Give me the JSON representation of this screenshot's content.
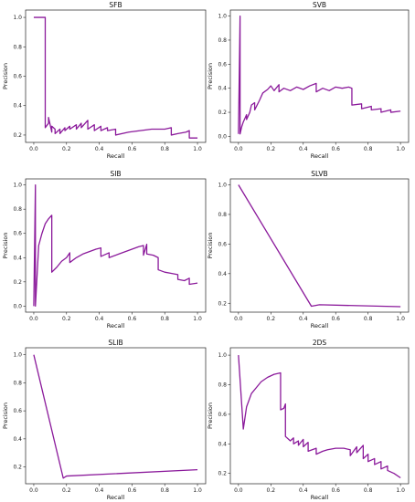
{
  "chart_data": [
    {
      "type": "line",
      "title": "SFB",
      "xlabel": "Recall",
      "ylabel": "Precision",
      "xlim": [
        -0.05,
        1.05
      ],
      "ylim": [
        0.15,
        1.05
      ],
      "xticks": [
        0.0,
        0.2,
        0.4,
        0.6,
        0.8,
        1.0
      ],
      "yticks": [
        0.2,
        0.4,
        0.6,
        0.8,
        1.0
      ],
      "xticklabels": [
        "0.0",
        "0.2",
        "0.4",
        "0.6",
        "0.8",
        "1.0"
      ],
      "yticklabels": [
        "0.2",
        "0.4",
        "0.6",
        "0.8",
        "1.0"
      ],
      "color": "#8b1a9b",
      "series": [
        {
          "x": [
            0.0,
            0.07,
            0.07,
            0.09,
            0.09,
            0.11,
            0.11,
            0.13,
            0.13,
            0.16,
            0.16,
            0.19,
            0.19,
            0.22,
            0.22,
            0.26,
            0.26,
            0.29,
            0.29,
            0.33,
            0.33,
            0.37,
            0.37,
            0.41,
            0.41,
            0.45,
            0.45,
            0.5,
            0.5,
            0.58,
            0.65,
            0.72,
            0.8,
            0.84,
            0.84,
            0.88,
            0.93,
            0.95,
            0.95,
            1.0
          ],
          "y": [
            1.0,
            1.0,
            0.25,
            0.28,
            0.32,
            0.22,
            0.26,
            0.24,
            0.21,
            0.24,
            0.21,
            0.25,
            0.23,
            0.26,
            0.24,
            0.27,
            0.24,
            0.28,
            0.25,
            0.3,
            0.24,
            0.27,
            0.23,
            0.26,
            0.23,
            0.25,
            0.23,
            0.24,
            0.2,
            0.22,
            0.23,
            0.24,
            0.24,
            0.25,
            0.2,
            0.21,
            0.22,
            0.23,
            0.18,
            0.18
          ]
        }
      ]
    },
    {
      "type": "line",
      "title": "SVB",
      "xlabel": "Recall",
      "ylabel": "Precision",
      "xlim": [
        -0.05,
        1.05
      ],
      "ylim": [
        -0.05,
        1.05
      ],
      "xticks": [
        0.0,
        0.2,
        0.4,
        0.6,
        0.8,
        1.0
      ],
      "yticks": [
        0.0,
        0.2,
        0.4,
        0.6,
        0.8,
        1.0
      ],
      "xticklabels": [
        "0.0",
        "0.2",
        "0.4",
        "0.6",
        "0.8",
        "1.0"
      ],
      "yticklabels": [
        "0.0",
        "0.2",
        "0.4",
        "0.6",
        "0.8",
        "1.0"
      ],
      "color": "#8b1a9b",
      "series": [
        {
          "x": [
            0.0,
            0.01,
            0.01,
            0.02,
            0.03,
            0.05,
            0.05,
            0.07,
            0.08,
            0.1,
            0.1,
            0.13,
            0.15,
            0.18,
            0.2,
            0.22,
            0.25,
            0.25,
            0.28,
            0.32,
            0.36,
            0.4,
            0.44,
            0.48,
            0.48,
            0.52,
            0.56,
            0.6,
            0.64,
            0.68,
            0.7,
            0.7,
            0.76,
            0.76,
            0.82,
            0.82,
            0.88,
            0.88,
            0.94,
            0.94,
            1.0
          ],
          "y": [
            0.02,
            1.0,
            0.02,
            0.08,
            0.12,
            0.18,
            0.14,
            0.2,
            0.26,
            0.28,
            0.22,
            0.3,
            0.36,
            0.39,
            0.42,
            0.38,
            0.43,
            0.37,
            0.4,
            0.38,
            0.41,
            0.39,
            0.42,
            0.44,
            0.37,
            0.4,
            0.38,
            0.41,
            0.4,
            0.41,
            0.4,
            0.26,
            0.27,
            0.23,
            0.25,
            0.22,
            0.23,
            0.2,
            0.22,
            0.2,
            0.21
          ]
        }
      ]
    },
    {
      "type": "line",
      "title": "SIB",
      "xlabel": "Recall",
      "ylabel": "Precision",
      "xlim": [
        -0.05,
        1.05
      ],
      "ylim": [
        -0.05,
        1.05
      ],
      "xticks": [
        0.0,
        0.2,
        0.4,
        0.6,
        0.8,
        1.0
      ],
      "yticks": [
        0.0,
        0.2,
        0.4,
        0.6,
        0.8,
        1.0
      ],
      "xticklabels": [
        "0.0",
        "0.2",
        "0.4",
        "0.6",
        "0.8",
        "1.0"
      ],
      "yticklabels": [
        "0.0",
        "0.2",
        "0.4",
        "0.6",
        "0.8",
        "1.0"
      ],
      "color": "#8b1a9b",
      "series": [
        {
          "x": [
            0.0,
            0.01,
            0.01,
            0.03,
            0.05,
            0.07,
            0.09,
            0.11,
            0.11,
            0.14,
            0.17,
            0.2,
            0.22,
            0.22,
            0.26,
            0.3,
            0.34,
            0.38,
            0.41,
            0.41,
            0.46,
            0.46,
            0.52,
            0.56,
            0.6,
            0.64,
            0.67,
            0.67,
            0.69,
            0.69,
            0.73,
            0.76,
            0.76,
            0.8,
            0.84,
            0.88,
            0.88,
            0.92,
            0.95,
            0.95,
            1.0
          ],
          "y": [
            0.0,
            1.0,
            0.0,
            0.5,
            0.6,
            0.68,
            0.72,
            0.75,
            0.28,
            0.32,
            0.37,
            0.4,
            0.44,
            0.36,
            0.4,
            0.43,
            0.45,
            0.47,
            0.48,
            0.41,
            0.44,
            0.4,
            0.43,
            0.45,
            0.47,
            0.49,
            0.5,
            0.42,
            0.51,
            0.43,
            0.42,
            0.4,
            0.3,
            0.28,
            0.27,
            0.26,
            0.22,
            0.21,
            0.23,
            0.18,
            0.19
          ]
        }
      ]
    },
    {
      "type": "line",
      "title": "SLVB",
      "xlabel": "Recall",
      "ylabel": "Precision",
      "xlim": [
        -0.05,
        1.05
      ],
      "ylim": [
        0.14,
        1.04
      ],
      "xticks": [
        0.0,
        0.2,
        0.4,
        0.6,
        0.8,
        1.0
      ],
      "yticks": [
        0.2,
        0.4,
        0.6,
        0.8,
        1.0
      ],
      "xticklabels": [
        "0.0",
        "0.2",
        "0.4",
        "0.6",
        "0.8",
        "1.0"
      ],
      "yticklabels": [
        "0.2",
        "0.4",
        "0.6",
        "0.8",
        "1.0"
      ],
      "color": "#8b1a9b",
      "series": [
        {
          "x": [
            0.0,
            0.45,
            0.5,
            1.0
          ],
          "y": [
            1.0,
            0.18,
            0.19,
            0.177
          ]
        }
      ]
    },
    {
      "type": "line",
      "title": "SLIB",
      "xlabel": "Recall",
      "ylabel": "Precision",
      "xlim": [
        -0.05,
        1.05
      ],
      "ylim": [
        0.08,
        1.05
      ],
      "xticks": [
        0.0,
        0.2,
        0.4,
        0.6,
        0.8,
        1.0
      ],
      "yticks": [
        0.2,
        0.4,
        0.6,
        0.8,
        1.0
      ],
      "xticklabels": [
        "0.0",
        "0.2",
        "0.4",
        "0.6",
        "0.8",
        "1.0"
      ],
      "yticklabels": [
        "0.2",
        "0.4",
        "0.6",
        "0.8",
        "1.0"
      ],
      "color": "#8b1a9b",
      "series": [
        {
          "x": [
            0.0,
            0.18,
            0.2,
            1.0
          ],
          "y": [
            1.0,
            0.12,
            0.135,
            0.18
          ]
        }
      ]
    },
    {
      "type": "line",
      "title": "2DS",
      "xlabel": "Recall",
      "ylabel": "Precision",
      "xlim": [
        -0.05,
        1.05
      ],
      "ylim": [
        0.13,
        1.05
      ],
      "xticks": [
        0.0,
        0.2,
        0.4,
        0.6,
        0.8,
        1.0
      ],
      "yticks": [
        0.2,
        0.4,
        0.6,
        0.8,
        1.0
      ],
      "xticklabels": [
        "0.0",
        "0.2",
        "0.4",
        "0.6",
        "0.8",
        "1.0"
      ],
      "yticklabels": [
        "0.2",
        "0.4",
        "0.6",
        "0.8",
        "1.0"
      ],
      "color": "#8b1a9b",
      "series": [
        {
          "x": [
            0.0,
            0.03,
            0.05,
            0.08,
            0.11,
            0.14,
            0.18,
            0.22,
            0.26,
            0.26,
            0.28,
            0.29,
            0.29,
            0.32,
            0.34,
            0.34,
            0.37,
            0.37,
            0.4,
            0.4,
            0.43,
            0.43,
            0.48,
            0.48,
            0.52,
            0.55,
            0.6,
            0.65,
            0.69,
            0.69,
            0.73,
            0.73,
            0.77,
            0.77,
            0.8,
            0.8,
            0.84,
            0.84,
            0.88,
            0.88,
            0.92,
            0.92,
            0.96,
            1.0
          ],
          "y": [
            1.0,
            0.5,
            0.65,
            0.74,
            0.78,
            0.82,
            0.85,
            0.87,
            0.88,
            0.63,
            0.64,
            0.67,
            0.45,
            0.42,
            0.44,
            0.4,
            0.42,
            0.39,
            0.43,
            0.38,
            0.41,
            0.35,
            0.37,
            0.33,
            0.35,
            0.36,
            0.37,
            0.37,
            0.36,
            0.32,
            0.38,
            0.34,
            0.39,
            0.3,
            0.33,
            0.28,
            0.3,
            0.26,
            0.28,
            0.23,
            0.25,
            0.22,
            0.2,
            0.17
          ]
        }
      ]
    }
  ]
}
